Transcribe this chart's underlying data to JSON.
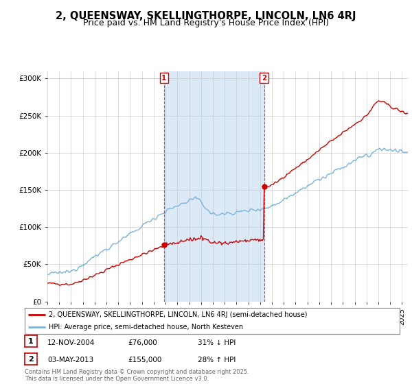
{
  "title": "2, QUEENSWAY, SKELLINGTHORPE, LINCOLN, LN6 4RJ",
  "subtitle": "Price paid vs. HM Land Registry's House Price Index (HPI)",
  "title_fontsize": 10.5,
  "subtitle_fontsize": 9,
  "background_color": "#ffffff",
  "plot_bg_color": "#ffffff",
  "shade_color": "#dce9f7",
  "grid_color": "#cccccc",
  "ylabel": "",
  "xlabel": "",
  "ylim": [
    0,
    310000
  ],
  "yticks": [
    0,
    50000,
    100000,
    150000,
    200000,
    250000,
    300000
  ],
  "ytick_labels": [
    "£0",
    "£50K",
    "£100K",
    "£150K",
    "£200K",
    "£250K",
    "£300K"
  ],
  "hpi_color": "#7ab4d8",
  "price_color": "#cc0000",
  "sale1_year": 2004.87,
  "sale1_price": 76000,
  "sale1_label": "1",
  "sale1_date": "12-NOV-2004",
  "sale1_pct": "31% ↓ HPI",
  "sale2_year": 2013.34,
  "sale2_price": 155000,
  "sale2_label": "2",
  "sale2_date": "03-MAY-2013",
  "sale2_pct": "28% ↑ HPI",
  "legend_line1": "2, QUEENSWAY, SKELLINGTHORPE, LINCOLN, LN6 4RJ (semi-detached house)",
  "legend_line2": "HPI: Average price, semi-detached house, North Kesteven",
  "footer": "Contains HM Land Registry data © Crown copyright and database right 2025.\nThis data is licensed under the Open Government Licence v3.0.",
  "xmin": 1995.0,
  "xmax": 2025.5
}
